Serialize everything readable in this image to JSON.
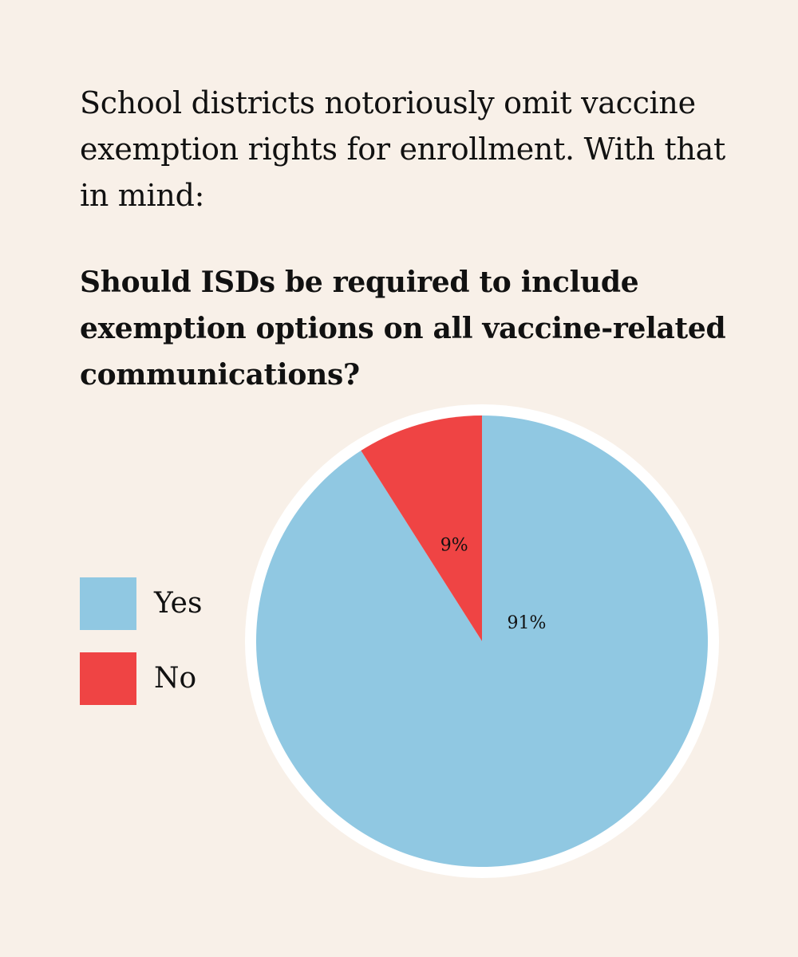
{
  "intro_text": "School districts notoriously omit vaccine exemption rights for enrollment. With that in mind:",
  "question_text": "Should ISDs be required to include exemption options on all vaccine-related communications?",
  "chart_data": {
    "type": "pie",
    "title": "",
    "slices": [
      {
        "label": "Yes",
        "value": 91,
        "display": "91%",
        "color": "#90c8e2"
      },
      {
        "label": "No",
        "value": 9,
        "display": "9%",
        "color": "#ef4444"
      }
    ],
    "legend_position": "left",
    "border_color": "#ffffff"
  }
}
